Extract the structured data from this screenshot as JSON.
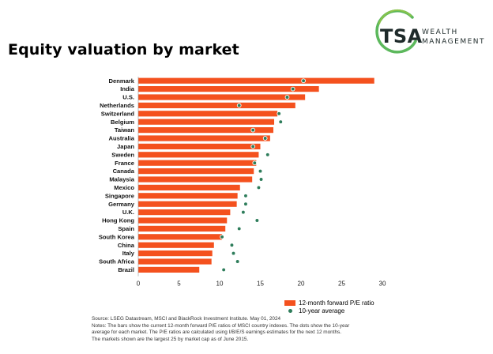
{
  "title": "Equity valuation by market",
  "logo": {
    "mark": "TSA",
    "line1": "WEALTH",
    "line2": "MANAGEMENT",
    "ring_color": "#5cb85c"
  },
  "colors": {
    "bar": "#f4511e",
    "dot": "#2e7d5b"
  },
  "legend": {
    "bar_label": "12-month forward P/E ratio",
    "dot_label": "10-year average"
  },
  "footnotes": {
    "source": "Source: LSEG Datastream, MSCI and BlackRock Investment Institute. May 01, 2024",
    "note1": "Notes: The bars show the current 12-month forward P/E ratios of MSCI country indexes. The dots show the 10-year",
    "note2": "average for each market. The P/E ratios are calculated using I/B/E/S earnings estimates for the next 12 months.",
    "note3": "The markets shown are the largest 25 by market cap as of June 2015."
  },
  "chart_data": {
    "type": "bar",
    "orientation": "horizontal",
    "categories": [
      "Denmark",
      "India",
      "U.S.",
      "Netherlands",
      "Switzerland",
      "Belgium",
      "Taiwan",
      "Australia",
      "Japan",
      "Sweden",
      "France",
      "Canada",
      "Malaysia",
      "Mexico",
      "Singapore",
      "Germany",
      "U.K.",
      "Hong Kong",
      "Spain",
      "South Korea",
      "China",
      "Italy",
      "South Africa",
      "Brazil"
    ],
    "series": [
      {
        "name": "12-month forward P/E ratio",
        "values": [
          29.0,
          22.2,
          20.5,
          19.3,
          17.1,
          16.7,
          16.6,
          16.2,
          15.0,
          14.8,
          14.5,
          14.2,
          14.0,
          12.5,
          12.2,
          12.1,
          11.3,
          10.9,
          10.7,
          10.3,
          9.3,
          9.1,
          9.0,
          7.5
        ]
      },
      {
        "name": "10-year average",
        "values": [
          20.3,
          19.0,
          18.3,
          12.4,
          17.3,
          17.5,
          14.1,
          15.6,
          14.1,
          15.9,
          14.3,
          15.0,
          15.1,
          14.8,
          13.2,
          13.2,
          12.9,
          14.6,
          12.4,
          10.3,
          11.5,
          11.7,
          12.2,
          10.5
        ]
      }
    ],
    "xlim": [
      0,
      30
    ],
    "xticks": [
      0,
      5,
      10,
      15,
      20,
      25,
      30
    ],
    "grid": false,
    "legend_position": "bottom-right"
  }
}
